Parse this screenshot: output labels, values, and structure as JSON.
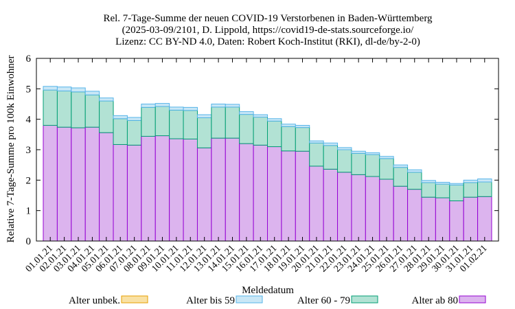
{
  "chart_data": {
    "type": "bar",
    "stacked": true,
    "title": [
      "Rel. 7-Tage-Summe der neuen COVID-19 Verstorbenen in Baden-Württemberg",
      "(2025-03-09/2101, D. Lippold, https://covid19-de-stats.sourceforge.io/",
      "Lizenz: CC BY-ND 4.0, Daten: Robert Koch-Institut (RKI), dl-de/by-2-0)"
    ],
    "xlabel": "Meldedatum",
    "ylabel": "Relative 7-Tage-Summe pro 100k Einwohner",
    "ylim": [
      0,
      6
    ],
    "yticks": [
      "0",
      "1",
      "2",
      "3",
      "4",
      "5",
      "6"
    ],
    "grid": false,
    "legend_placement": "bottom",
    "categories": [
      "01.01.21",
      "02.01.21",
      "03.01.21",
      "04.01.21",
      "05.01.21",
      "06.01.21",
      "07.01.21",
      "08.01.21",
      "09.01.21",
      "10.01.21",
      "11.01.21",
      "12.01.21",
      "13.01.21",
      "14.01.21",
      "15.01.21",
      "16.01.21",
      "17.01.21",
      "18.01.21",
      "19.01.21",
      "20.01.21",
      "21.01.21",
      "22.01.21",
      "23.01.21",
      "24.01.21",
      "25.01.21",
      "26.01.21",
      "27.01.21",
      "28.01.21",
      "29.01.21",
      "30.01.21",
      "31.01.21",
      "01.02.21"
    ],
    "series": [
      {
        "name": "Alter ab 80",
        "fill": "#dcb4ee",
        "stroke": "#9400d3",
        "values": [
          3.8,
          3.74,
          3.72,
          3.74,
          3.56,
          3.17,
          3.15,
          3.44,
          3.46,
          3.36,
          3.35,
          3.06,
          3.38,
          3.38,
          3.2,
          3.15,
          3.1,
          2.96,
          2.95,
          2.46,
          2.36,
          2.26,
          2.18,
          2.12,
          2.03,
          1.8,
          1.7,
          1.44,
          1.42,
          1.32,
          1.44,
          1.46
        ]
      },
      {
        "name": "Alter 60 - 79",
        "fill": "#b2e2d4",
        "stroke": "#009e73",
        "values": [
          1.16,
          1.19,
          1.18,
          1.06,
          1.04,
          0.85,
          0.81,
          0.95,
          0.96,
          0.94,
          0.94,
          0.99,
          1.02,
          1.02,
          0.96,
          0.92,
          0.84,
          0.8,
          0.78,
          0.76,
          0.78,
          0.74,
          0.7,
          0.72,
          0.68,
          0.62,
          0.56,
          0.48,
          0.45,
          0.52,
          0.48,
          0.48
        ]
      },
      {
        "name": "Alter bis 59",
        "fill": "#c9e7f6",
        "stroke": "#56b4e9",
        "values": [
          0.12,
          0.13,
          0.13,
          0.12,
          0.1,
          0.1,
          0.1,
          0.11,
          0.1,
          0.1,
          0.1,
          0.1,
          0.1,
          0.09,
          0.09,
          0.08,
          0.08,
          0.08,
          0.07,
          0.07,
          0.08,
          0.07,
          0.07,
          0.06,
          0.07,
          0.08,
          0.08,
          0.07,
          0.06,
          0.05,
          0.08,
          0.1
        ]
      },
      {
        "name": "Alter unbek.",
        "fill": "#f9e1a4",
        "stroke": "#e69f00",
        "values": [
          0,
          0,
          0,
          0,
          0,
          0,
          0,
          0,
          0,
          0,
          0,
          0,
          0,
          0,
          0,
          0,
          0,
          0,
          0,
          0,
          0,
          0,
          0,
          0,
          0,
          0,
          0,
          0,
          0,
          0,
          0,
          0
        ]
      }
    ],
    "legend_order": [
      "Alter unbek.",
      "Alter bis 59",
      "Alter 60 - 79",
      "Alter ab 80"
    ]
  }
}
